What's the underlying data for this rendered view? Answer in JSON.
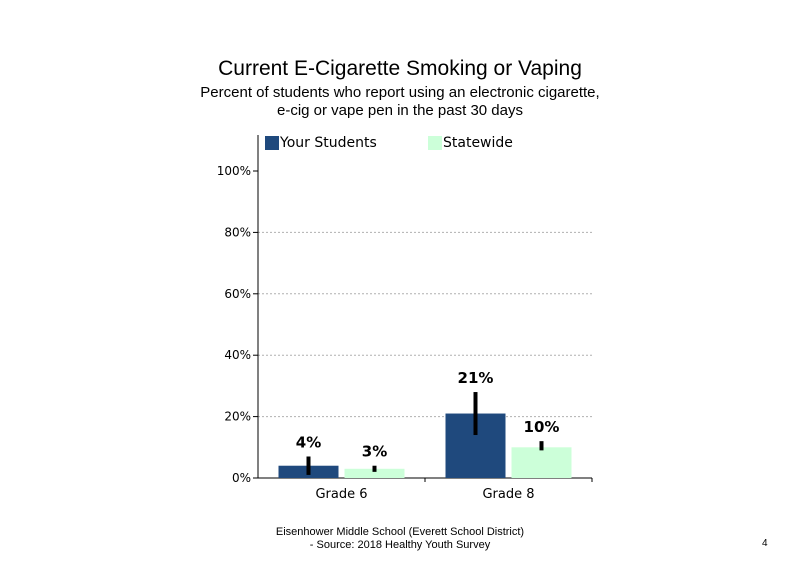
{
  "header": {
    "title": "Current  E-Cigarette  Smoking  or Vaping",
    "subtitle_line1": "Percent of students  who report using an electronic cigarette,",
    "subtitle_line2": "e-cig or vape pen in the past 30 days"
  },
  "footer": {
    "line1": "Eisenhower Middle School (Everett School District)",
    "line2": "- Source: 2018 Healthy  Youth Survey",
    "page_number": "4"
  },
  "chart_data": {
    "type": "bar",
    "title": "",
    "xlabel": "",
    "ylabel": "",
    "categories": [
      "Grade 6",
      "Grade 8"
    ],
    "series": [
      {
        "name": "Your Students",
        "color": "#1f497d",
        "values": [
          4,
          21
        ],
        "data_labels": [
          "4%",
          "21%"
        ],
        "error_low": [
          1,
          14
        ],
        "error_high": [
          7,
          28
        ]
      },
      {
        "name": "Statewide",
        "color": "#ccffd9",
        "values": [
          3,
          10
        ],
        "data_labels": [
          "3%",
          "10%"
        ],
        "error_low": [
          2,
          9
        ],
        "error_high": [
          4,
          12
        ]
      }
    ],
    "ylim": [
      0,
      100
    ],
    "yticks": [
      0,
      20,
      40,
      60,
      80,
      100
    ],
    "ytick_labels": [
      "0%",
      "20%",
      "40%",
      "60%",
      "80%",
      "100%"
    ],
    "grid": "horizontal dashed",
    "legend_position": "top",
    "error_bars": true
  }
}
